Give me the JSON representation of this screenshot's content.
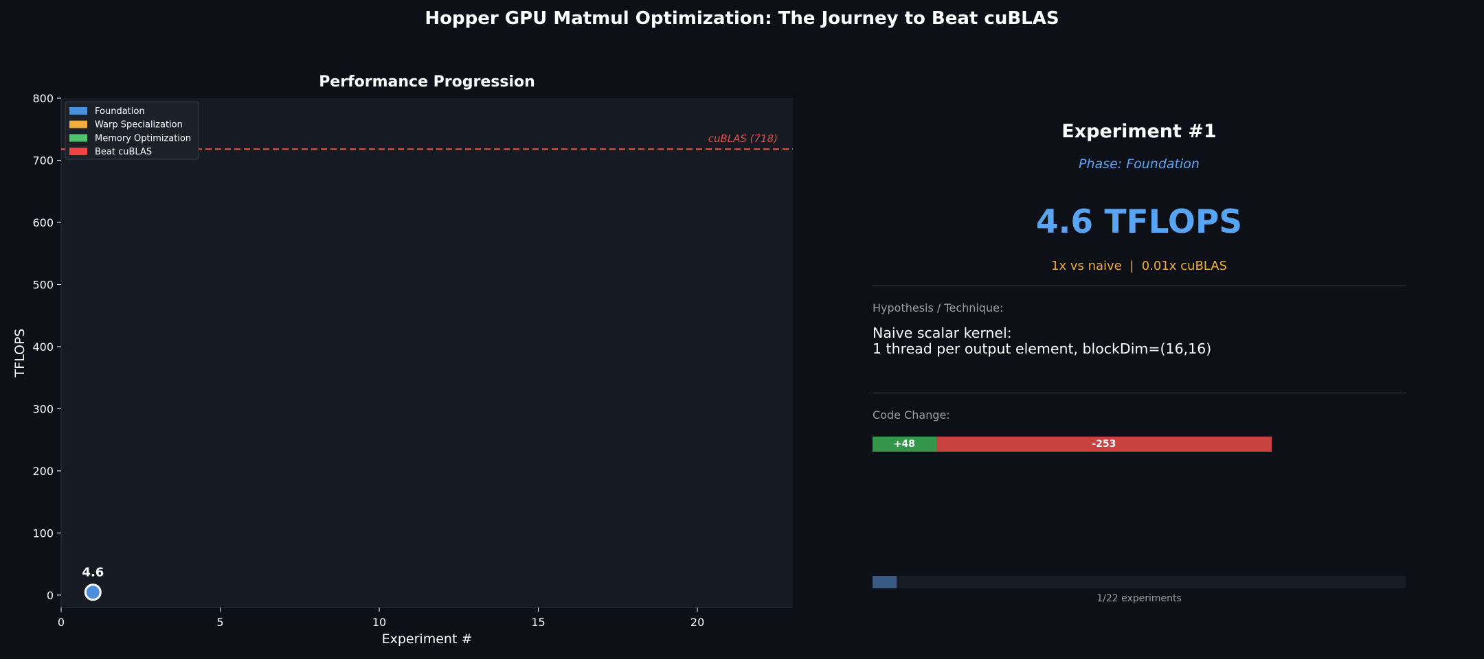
{
  "title": "Hopper GPU Matmul Optimization: The Journey to Beat cuBLAS",
  "colors": {
    "background": "#0d1017",
    "plot_background": "#161a22",
    "foundation": "#4a8fdc",
    "warp_specialization": "#f0ad3c",
    "memory_optimization": "#4fc46f",
    "beat_cublas": "#ef4444",
    "cublas_line": "#d9534f",
    "value_text": "#59a5f5"
  },
  "chart_data": {
    "type": "scatter",
    "title": "Performance Progression",
    "xlabel": "Experiment #",
    "ylabel": "TFLOPS",
    "xlim": [
      0,
      23
    ],
    "ylim": [
      -20,
      800
    ],
    "xticks": [
      0,
      5,
      10,
      15,
      20
    ],
    "yticks": [
      0,
      100,
      200,
      300,
      400,
      500,
      600,
      700,
      800
    ],
    "grid": false,
    "legend_position": "top-left",
    "legend": [
      "Foundation",
      "Warp Specialization",
      "Memory Optimization",
      "Beat cuBLAS"
    ],
    "series": [
      {
        "name": "Foundation",
        "points": [
          {
            "x": 1,
            "y": 4.6,
            "label": "4.6"
          }
        ]
      }
    ],
    "reference_line": {
      "y": 718,
      "label": "cuBLAS (718)"
    }
  },
  "experiment": {
    "title": "Experiment #1",
    "phase": "Phase: Foundation",
    "value": "4.6 TFLOPS",
    "speedup": "1x vs naive  |  0.01x cuBLAS",
    "hypothesis_label": "Hypothesis / Technique:",
    "hypothesis_line1": "Naive scalar kernel:",
    "hypothesis_line2": "1 thread per output element, blockDim=(16,16)",
    "code_change_label": "Code Change:",
    "lines_added": "+48",
    "lines_removed": "-253",
    "added_count": 48,
    "removed_count": 253,
    "progress_fraction": 0.045,
    "progress_label": "1/22 experiments"
  }
}
